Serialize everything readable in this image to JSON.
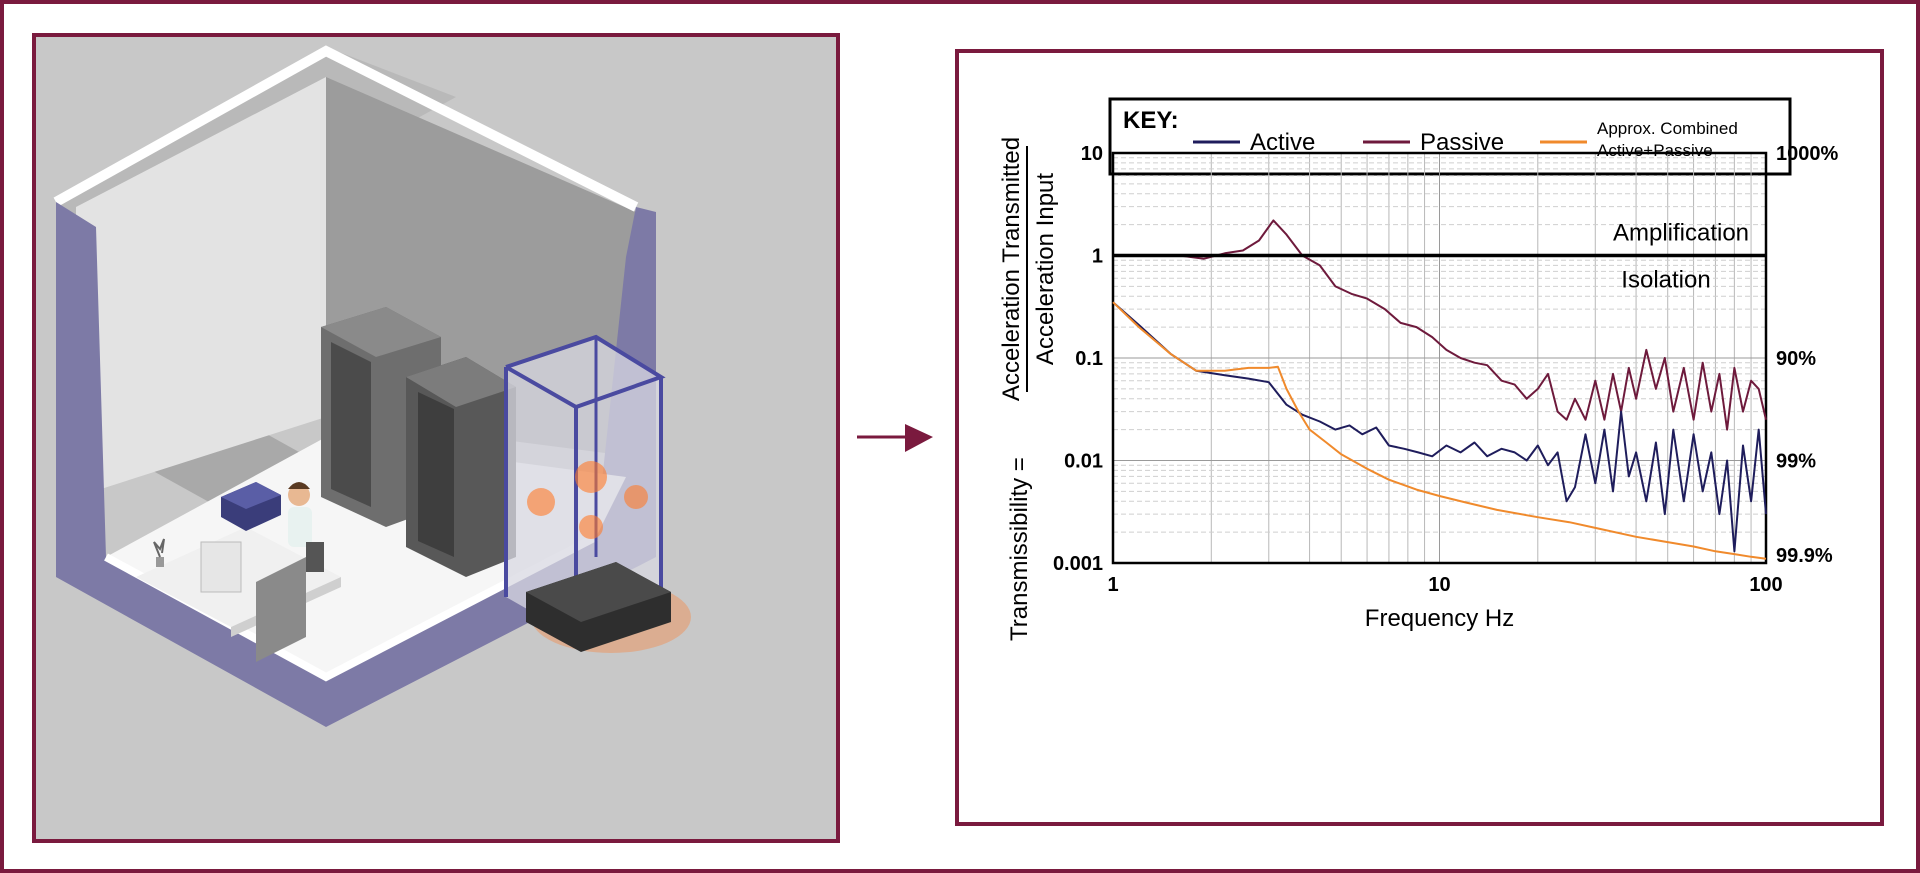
{
  "colors": {
    "frame": "#7a1a3e",
    "active": "#1f1d5c",
    "passive": "#6e1a3c",
    "combined": "#f08a2c",
    "room_wall": "#7d7aa6",
    "glow": "#ff7a2a"
  },
  "illustration": {
    "description_icon": "isometric-lab-room-icon"
  },
  "chart_data": {
    "type": "line",
    "xscale": "log",
    "yscale": "log",
    "xlim": [
      1,
      100
    ],
    "ylim": [
      0.001,
      10
    ],
    "grid": true,
    "legend_title": "KEY:",
    "legend_placement": "top",
    "xlabel": "Frequency Hz",
    "ylabel_prefix": "Transmissibility =",
    "ylabel_numerator": "Acceleration Transmitted",
    "ylabel_denominator": "Acceleration Input",
    "x_ticks": [
      {
        "value": 1,
        "label": "1"
      },
      {
        "value": 10,
        "label": "10"
      },
      {
        "value": 100,
        "label": "100"
      }
    ],
    "y_ticks": [
      {
        "value": 10,
        "label": "10"
      },
      {
        "value": 1,
        "label": "1"
      },
      {
        "value": 0.1,
        "label": "0.1"
      },
      {
        "value": 0.01,
        "label": "0.01"
      },
      {
        "value": 0.001,
        "label": "0.001"
      }
    ],
    "y2_ticks": [
      {
        "value": 10,
        "label": "1000%"
      },
      {
        "value": 0.1,
        "label": "90%"
      },
      {
        "value": 0.01,
        "label": "99%"
      },
      {
        "value": 0.0012,
        "label": "99.9%"
      }
    ],
    "reference_line": {
      "value": 1,
      "above_label": "Amplification",
      "below_label": "Isolation"
    },
    "series": [
      {
        "name": "Active",
        "x": [
          1,
          1.2,
          1.5,
          1.8,
          2.2,
          2.6,
          3.0,
          3.4,
          3.8,
          4.3,
          4.8,
          5.3,
          5.8,
          6.4,
          7.0,
          7.8,
          8.6,
          9.5,
          10.5,
          11.6,
          12.8,
          14,
          15.5,
          17,
          18.5,
          20,
          21.5,
          23,
          24.5,
          26,
          28,
          30,
          32,
          34,
          36,
          38,
          40,
          43,
          46,
          49,
          52,
          56,
          60,
          64,
          68,
          72,
          76,
          80,
          85,
          90,
          95,
          100
        ],
        "values": [
          0.35,
          0.21,
          0.11,
          0.075,
          0.068,
          0.063,
          0.058,
          0.035,
          0.028,
          0.024,
          0.02,
          0.022,
          0.018,
          0.021,
          0.014,
          0.013,
          0.012,
          0.011,
          0.014,
          0.012,
          0.015,
          0.011,
          0.013,
          0.012,
          0.01,
          0.014,
          0.009,
          0.012,
          0.004,
          0.0055,
          0.018,
          0.006,
          0.02,
          0.005,
          0.03,
          0.007,
          0.012,
          0.004,
          0.015,
          0.003,
          0.02,
          0.004,
          0.018,
          0.005,
          0.012,
          0.003,
          0.01,
          0.0013,
          0.014,
          0.004,
          0.02,
          0.003
        ]
      },
      {
        "name": "Passive",
        "x": [
          1,
          1.3,
          1.6,
          1.9,
          2.2,
          2.5,
          2.8,
          3.1,
          3.4,
          3.8,
          4.3,
          4.8,
          5.4,
          6.0,
          6.8,
          7.6,
          8.5,
          9.5,
          10.5,
          11.6,
          12.8,
          14,
          15.5,
          17,
          18.5,
          20,
          21.5,
          23,
          24.5,
          26,
          28,
          30,
          32,
          34,
          36,
          38,
          40,
          43,
          46,
          49,
          52,
          56,
          60,
          64,
          68,
          72,
          76,
          80,
          85,
          90,
          95,
          100
        ],
        "values": [
          1.0,
          1.0,
          1.0,
          0.93,
          1.05,
          1.12,
          1.4,
          2.2,
          1.6,
          1.0,
          0.8,
          0.5,
          0.42,
          0.38,
          0.3,
          0.22,
          0.2,
          0.16,
          0.12,
          0.1,
          0.09,
          0.085,
          0.06,
          0.055,
          0.04,
          0.05,
          0.07,
          0.03,
          0.025,
          0.04,
          0.025,
          0.06,
          0.025,
          0.07,
          0.03,
          0.08,
          0.04,
          0.12,
          0.05,
          0.1,
          0.03,
          0.08,
          0.025,
          0.09,
          0.03,
          0.07,
          0.02,
          0.08,
          0.03,
          0.06,
          0.05,
          0.025
        ]
      },
      {
        "name": "Approx. Combined Active+Passive",
        "x": [
          1,
          1.2,
          1.5,
          1.8,
          2.2,
          2.6,
          3.0,
          3.2,
          3.4,
          3.7,
          4.0,
          4.5,
          5.0,
          6.0,
          7.0,
          8.5,
          10,
          12,
          15,
          20,
          25,
          30,
          40,
          50,
          60,
          70,
          80,
          90,
          100
        ],
        "values": [
          0.35,
          0.2,
          0.11,
          0.075,
          0.075,
          0.08,
          0.08,
          0.082,
          0.05,
          0.03,
          0.02,
          0.015,
          0.0115,
          0.0083,
          0.0065,
          0.0052,
          0.0045,
          0.0039,
          0.0033,
          0.0028,
          0.0025,
          0.0022,
          0.0018,
          0.0016,
          0.00145,
          0.0013,
          0.00122,
          0.00115,
          0.0011
        ]
      }
    ],
    "legend": [
      {
        "name": "Active"
      },
      {
        "name": "Passive"
      },
      {
        "name_line1": "Approx. Combined",
        "name_line2": "Active+Passive"
      }
    ]
  }
}
